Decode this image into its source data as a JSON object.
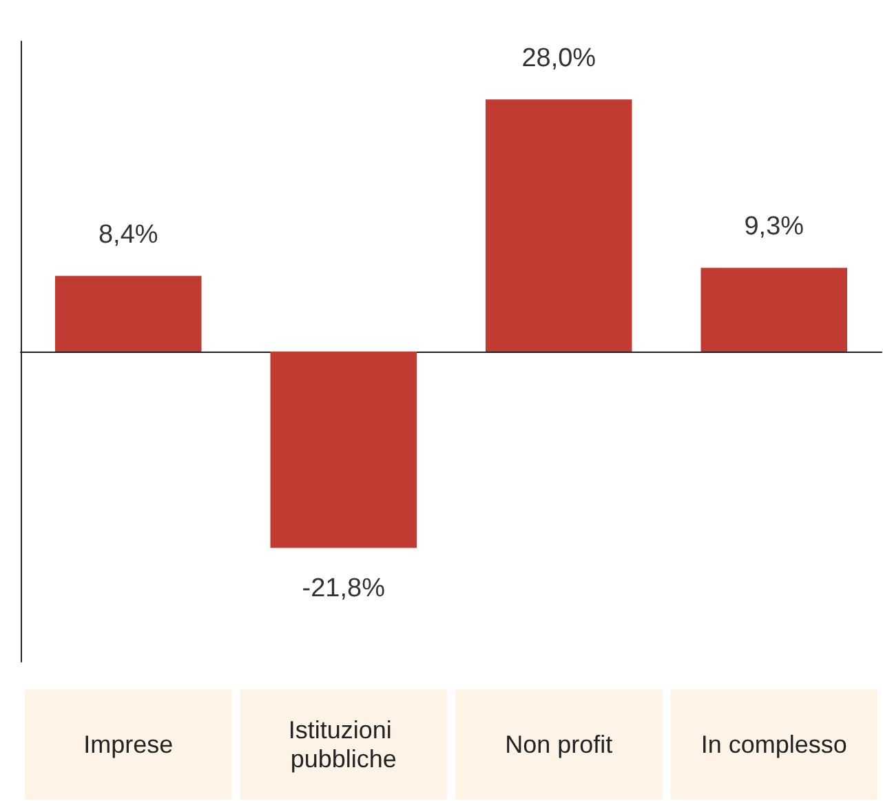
{
  "chart_data": {
    "type": "bar",
    "categories": [
      "Imprese",
      "Istituzioni pubbliche",
      "Non profit",
      "In complesso"
    ],
    "values": [
      8.4,
      -21.8,
      28.0,
      9.3
    ],
    "value_labels": [
      "8,4%",
      "-21,8%",
      "28,0%",
      "9,3%"
    ],
    "color": "#c13b32"
  }
}
